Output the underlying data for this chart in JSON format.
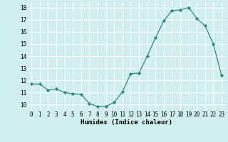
{
  "x": [
    0,
    1,
    2,
    3,
    4,
    5,
    6,
    7,
    8,
    9,
    10,
    11,
    12,
    13,
    14,
    15,
    16,
    17,
    18,
    19,
    20,
    21,
    22,
    23
  ],
  "y": [
    11.7,
    11.7,
    11.2,
    11.3,
    11.0,
    10.9,
    10.85,
    10.1,
    9.85,
    9.85,
    10.2,
    11.05,
    12.55,
    12.6,
    14.0,
    15.5,
    16.9,
    17.75,
    17.8,
    18.0,
    17.1,
    16.5,
    15.0,
    12.4
  ],
  "line_color": "#2e8b7a",
  "marker": "D",
  "marker_size": 2.2,
  "bg_color": "#d0eeee",
  "grid_color": "#ffffff",
  "xlabel": "Humidex (Indice chaleur)",
  "ylim": [
    9.5,
    18.5
  ],
  "xlim": [
    -0.5,
    23.5
  ],
  "yticks": [
    10,
    11,
    12,
    13,
    14,
    15,
    16,
    17,
    18
  ],
  "xticks": [
    0,
    1,
    2,
    3,
    4,
    5,
    6,
    7,
    8,
    9,
    10,
    11,
    12,
    13,
    14,
    15,
    16,
    17,
    18,
    19,
    20,
    21,
    22,
    23
  ],
  "tick_fontsize": 5.5,
  "xlabel_fontsize": 6.5,
  "line_width": 0.9
}
